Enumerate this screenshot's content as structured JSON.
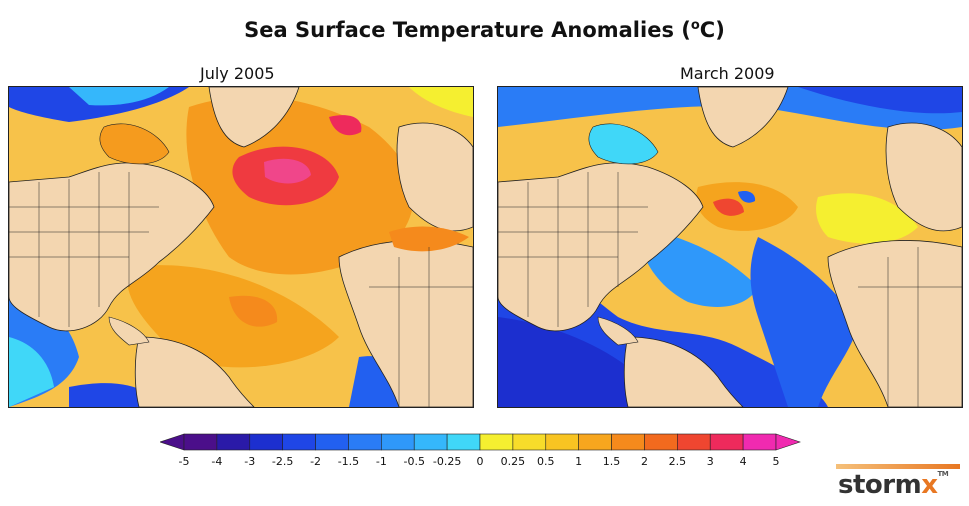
{
  "title": "Sea Surface Temperature Anomalies (",
  "title_unit_sup": "o",
  "title_end": "C)",
  "panels": [
    {
      "label": "July 2005"
    },
    {
      "label": "March 2009"
    }
  ],
  "colorbar": {
    "labels": [
      "-5",
      "-4",
      "-3",
      "-2.5",
      "-2",
      "-1.5",
      "-1",
      "-0.5",
      "-0.25",
      "0",
      "0.25",
      "0.5",
      "1",
      "1.5",
      "2",
      "2.5",
      "3",
      "4",
      "5"
    ],
    "colors": [
      "#4b0f8a",
      "#2a1aa8",
      "#1c2fcf",
      "#1f46e6",
      "#2260f0",
      "#2a7cf6",
      "#2f98fa",
      "#35b7fb",
      "#40d7f8",
      "#f5ef30",
      "#f7dc2a",
      "#f8c422",
      "#f7a61e",
      "#f58a1c",
      "#f26a1e",
      "#ef4630",
      "#ee2a5c",
      "#f02ab0"
    ]
  },
  "logo": {
    "text_a": "storm",
    "text_b": "x",
    "tm": "TM"
  },
  "palette": {
    "land": "#f3d6b0",
    "border": "#222222"
  }
}
